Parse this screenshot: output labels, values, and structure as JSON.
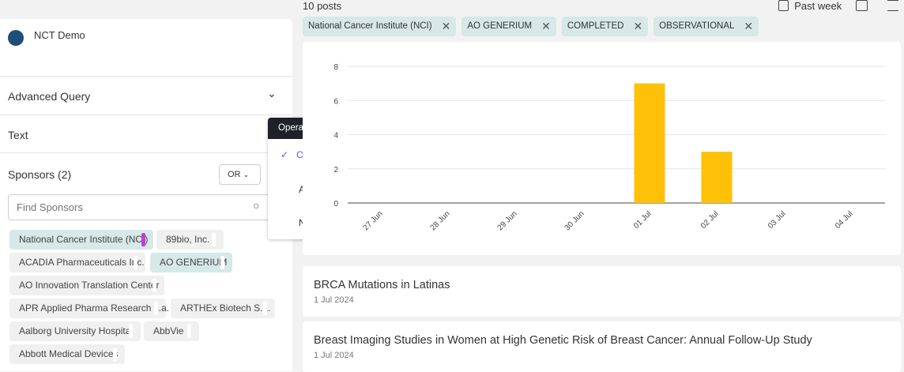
{
  "sidebar": {
    "app_name": "NCT Demo",
    "advanced_query": "Advanced Query",
    "text_section": "Text",
    "sponsors_title": "Sponsors (2)",
    "operator_value": "OR",
    "search_placeholder": "Find Sponsors",
    "sponsors": [
      {
        "label": "National Cancer Institute (NCI)",
        "selected": true
      },
      {
        "label": "89bio, Inc.",
        "selected": false
      },
      {
        "label": "ACADIA Pharmaceuticals Inc.",
        "selected": false
      },
      {
        "label": "AO GENERIUM",
        "selected": true
      },
      {
        "label": "AO Innovation Translation Center",
        "selected": false
      },
      {
        "label": "APR Applied Pharma Research s.a.",
        "selected": false
      },
      {
        "label": "ARTHEx Biotech S.L.",
        "selected": false
      },
      {
        "label": "Aalborg University Hospital",
        "selected": false
      },
      {
        "label": "AbbVie",
        "selected": false
      },
      {
        "label": "Abbott Medical Devices",
        "selected": false
      }
    ]
  },
  "operator_menu": {
    "title": "Operator",
    "options": [
      "OR",
      "AND",
      "NOT"
    ],
    "selected": "OR"
  },
  "header": {
    "count": "10 posts",
    "date_range": "Past week"
  },
  "filters": [
    "National Cancer Institute (NCI)",
    "AO GENERIUM",
    "COMPLETED",
    "OBSERVATIONAL"
  ],
  "chart_data": {
    "type": "bar",
    "categories": [
      "27 Jun",
      "28 Jun",
      "29 Jun",
      "30 Jun",
      "01 Jul",
      "02 Jul",
      "03 Jul",
      "04 Jul"
    ],
    "values": [
      0,
      0,
      0,
      0,
      7,
      3,
      0,
      0
    ],
    "yticks": [
      0,
      2,
      4,
      6,
      8
    ],
    "ylim": [
      0,
      8
    ],
    "grid": true,
    "color": "#ffc107"
  },
  "posts": [
    {
      "title": "BRCA Mutations in Latinas",
      "date": "1 Jul 2024"
    },
    {
      "title": "Breast Imaging Studies in Women at High Genetic Risk of Breast Cancer: Annual Follow-Up Study",
      "date": "1 Jul 2024"
    }
  ]
}
